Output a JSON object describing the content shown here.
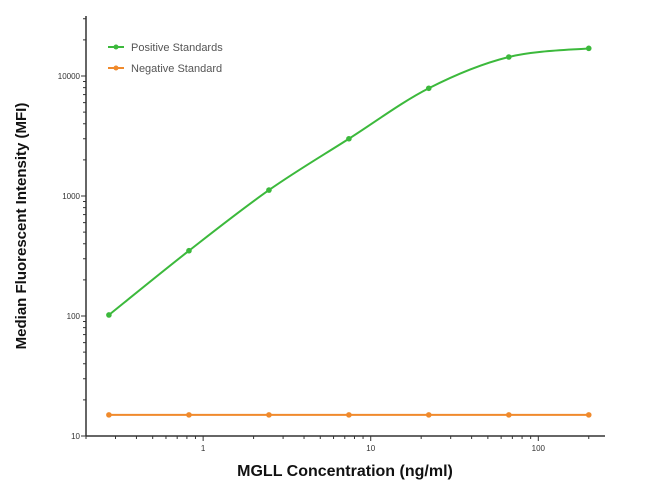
{
  "chart_data": {
    "type": "line",
    "xlabel": "MGLL Concentration (ng/ml)",
    "ylabel": "Median  Fluorescent Intensity  (MFI)",
    "xscale": "log",
    "yscale": "log",
    "xlim": [
      0.2,
      250
    ],
    "ylim": [
      10,
      31623
    ],
    "xticks": [
      {
        "value": 1,
        "label": "1"
      },
      {
        "value": 10,
        "label": "10"
      },
      {
        "value": 100,
        "label": "100"
      }
    ],
    "yticks": [
      {
        "value": 10,
        "label": "10"
      },
      {
        "value": 100,
        "label": "100"
      },
      {
        "value": 1000,
        "label": "1000"
      },
      {
        "value": 10000,
        "label": "10000"
      }
    ],
    "grid": false,
    "legend_placement": "top-left",
    "series": [
      {
        "name": "Positive Standards",
        "color": "#3cb93c",
        "x": [
          0.274,
          0.823,
          2.47,
          7.41,
          22.2,
          66.7,
          200
        ],
        "y": [
          102,
          350,
          1120,
          3000,
          7900,
          14400,
          17000
        ],
        "curve": "smooth"
      },
      {
        "name": "Negative Standard",
        "color": "#f08a2c",
        "x": [
          0.274,
          0.823,
          2.47,
          7.41,
          22.2,
          66.7,
          200
        ],
        "y": [
          15,
          15,
          15,
          15,
          15,
          15,
          15
        ],
        "curve": "straight"
      }
    ]
  }
}
